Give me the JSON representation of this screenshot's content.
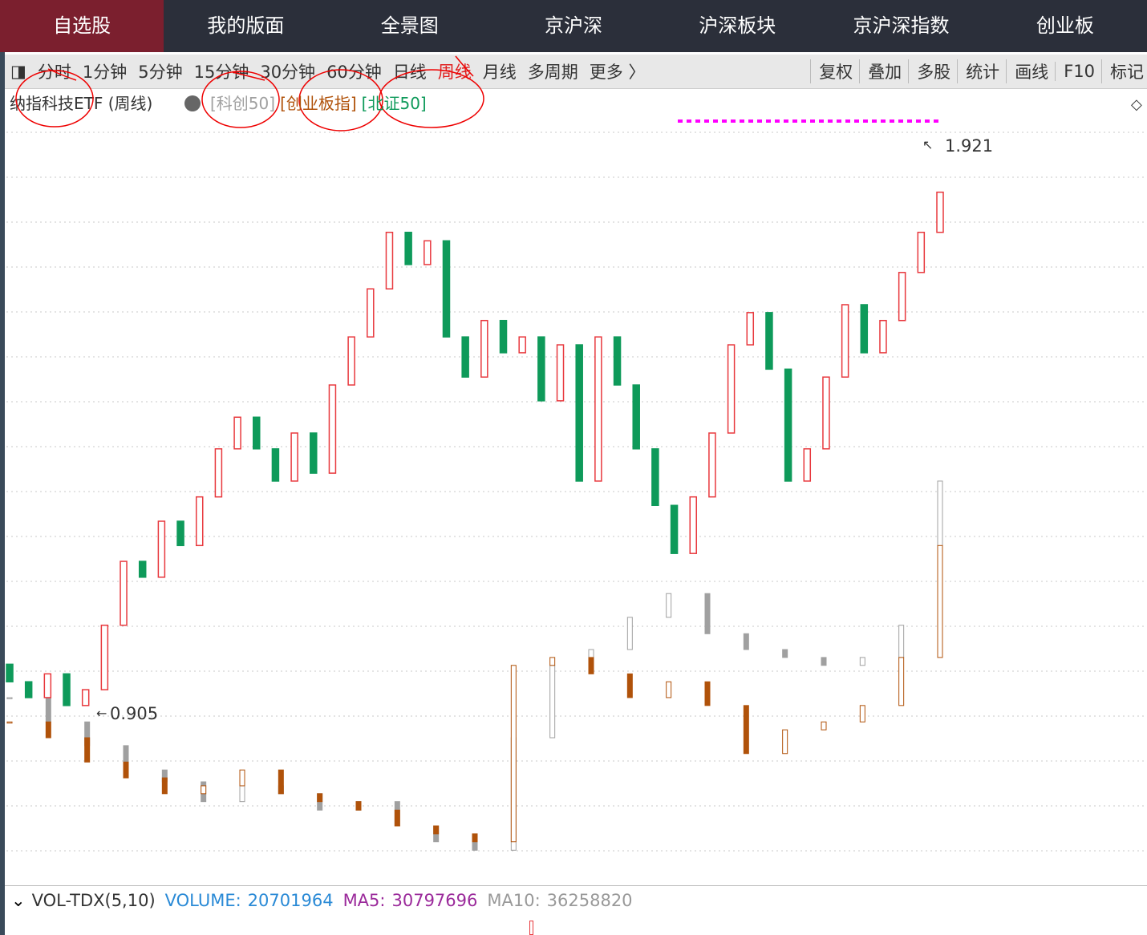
{
  "nav": {
    "tabs": [
      "自选股",
      "我的版面",
      "全景图",
      "京沪深",
      "沪深板块",
      "京沪深指数",
      "创业板"
    ],
    "active": 0
  },
  "toolbar": {
    "periods": [
      "分时",
      "1分钟",
      "5分钟",
      "15分钟",
      "30分钟",
      "60分钟",
      "日线",
      "周线",
      "月线",
      "多周期",
      "更多 〉"
    ],
    "active_period": 7,
    "tools": [
      "复权",
      "叠加",
      "多股",
      "统计",
      "画线",
      "F10",
      "标记"
    ]
  },
  "chart_data": {
    "type": "candlestick",
    "title": "纳指科技ETF (周线)",
    "first_open": 0.99,
    "closes": [
      0.959,
      0.931,
      0.973,
      0.917,
      0.945,
      1.059,
      1.172,
      1.144,
      1.243,
      1.2,
      1.286,
      1.371,
      1.427,
      1.371,
      1.314,
      1.399,
      1.328,
      1.484,
      1.569,
      1.654,
      1.754,
      1.697,
      1.739,
      1.569,
      1.498,
      1.598,
      1.541,
      1.569,
      1.456,
      1.555,
      1.314,
      1.569,
      1.484,
      1.371,
      1.271,
      1.186,
      1.286,
      1.399,
      1.555,
      1.612,
      1.512,
      1.314,
      1.371,
      1.498,
      1.626,
      1.541,
      1.598,
      1.683,
      1.754,
      1.825
    ],
    "up_color": "#e8383d",
    "down_color": "#0e9a5a",
    "high_label": "1.921",
    "low_label": "0.905",
    "overlays": [
      {
        "name": "[科创50]",
        "color": "#a0a0a0",
        "values": [
          0.931,
          0.888,
          0.846,
          0.803,
          0.782,
          0.747,
          0.775,
          0.761,
          0.732,
          0.747,
          0.704,
          0.676,
          0.661,
          0.86,
          0.988,
          1.016,
          1.073,
          1.115,
          1.044,
          1.016,
          1.002,
          0.988,
          1.002,
          1.059,
          1.314
        ]
      },
      {
        "name": "[创业板指]",
        "color": "#b0520a",
        "values": [
          0.888,
          0.86,
          0.817,
          0.789,
          0.761,
          0.775,
          0.803,
          0.761,
          0.747,
          0.732,
          0.704,
          0.69,
          0.676,
          0.988,
          1.002,
          0.973,
          0.931,
          0.959,
          0.917,
          0.832,
          0.874,
          0.888,
          0.917,
          1.002,
          1.2
        ]
      },
      {
        "name": "[北证50]",
        "color": "#0e9a5a",
        "values": []
      }
    ]
  },
  "volume_bar": {
    "name": "VOL-TDX(5,10)",
    "items": [
      {
        "label": "VOLUME:",
        "value": 20701964,
        "color": "#2a8ad6"
      },
      {
        "label": "MA5:",
        "value": 30797696,
        "color": "#9b2a9b"
      },
      {
        "label": "MA10:",
        "value": 36258820,
        "color": "#999999"
      }
    ]
  }
}
